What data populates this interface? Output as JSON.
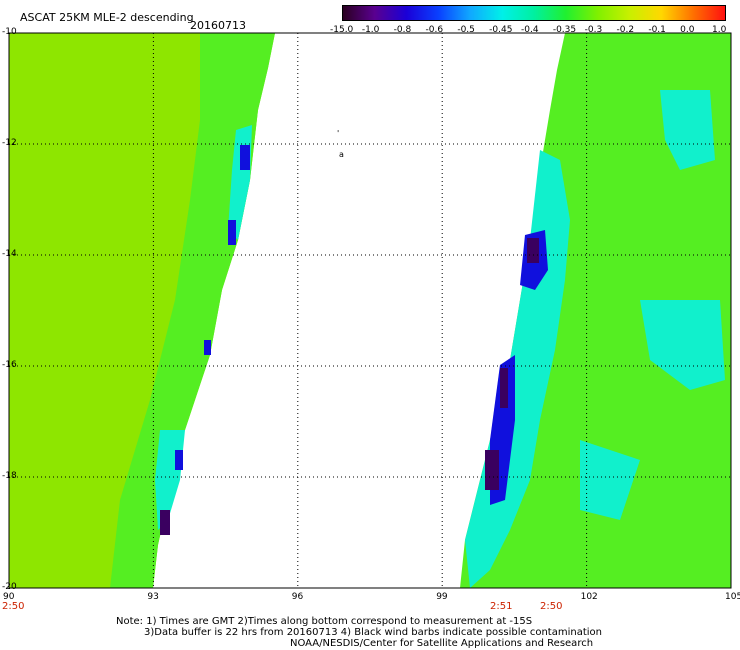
{
  "header": {
    "title": "ASCAT 25KM MLE-2 descending",
    "date": "20160713"
  },
  "colorbar": {
    "labels": [
      "-15.0",
      "-1.0",
      "-0.8",
      "-0.6",
      "-0.5",
      "-0.45",
      "-0.4",
      "-0.35",
      "-0.3",
      "-0.2",
      "-0.1",
      "0.0",
      "1.0"
    ],
    "colors": [
      "#2a0020",
      "#5a0090",
      "#1a00d8",
      "#0a40ff",
      "#10a8ff",
      "#00f0e8",
      "#00f0a0",
      "#20f030",
      "#80f000",
      "#c8f000",
      "#ffd800",
      "#ff7000",
      "#ff1010"
    ]
  },
  "map": {
    "lat_ticks": [
      "-10",
      "-12",
      "-14",
      "-16",
      "-18",
      "-20"
    ],
    "lon_ticks": [
      "90",
      "93",
      "96",
      "99",
      "102",
      "105"
    ],
    "time_labels": [
      "2:50",
      "2:51",
      "2:50"
    ],
    "colors": {
      "green": "#55ee22",
      "yellow_green": "#8ee600",
      "cyan": "#11f0cc",
      "blue": "#1010dd",
      "dark_purple": "#3a0060",
      "grid": "#000000",
      "time_label": "#cc2200"
    }
  },
  "footer": {
    "line1": "Note: 1) Times are GMT 2)Times along bottom correspond to measurement at -15S",
    "line2": "3)Data buffer is 22 hrs from 20160713 4) Black wind barbs indicate possible contamination",
    "line3": "NOAA/NESDIS/Center for Satellite Applications and Research"
  }
}
